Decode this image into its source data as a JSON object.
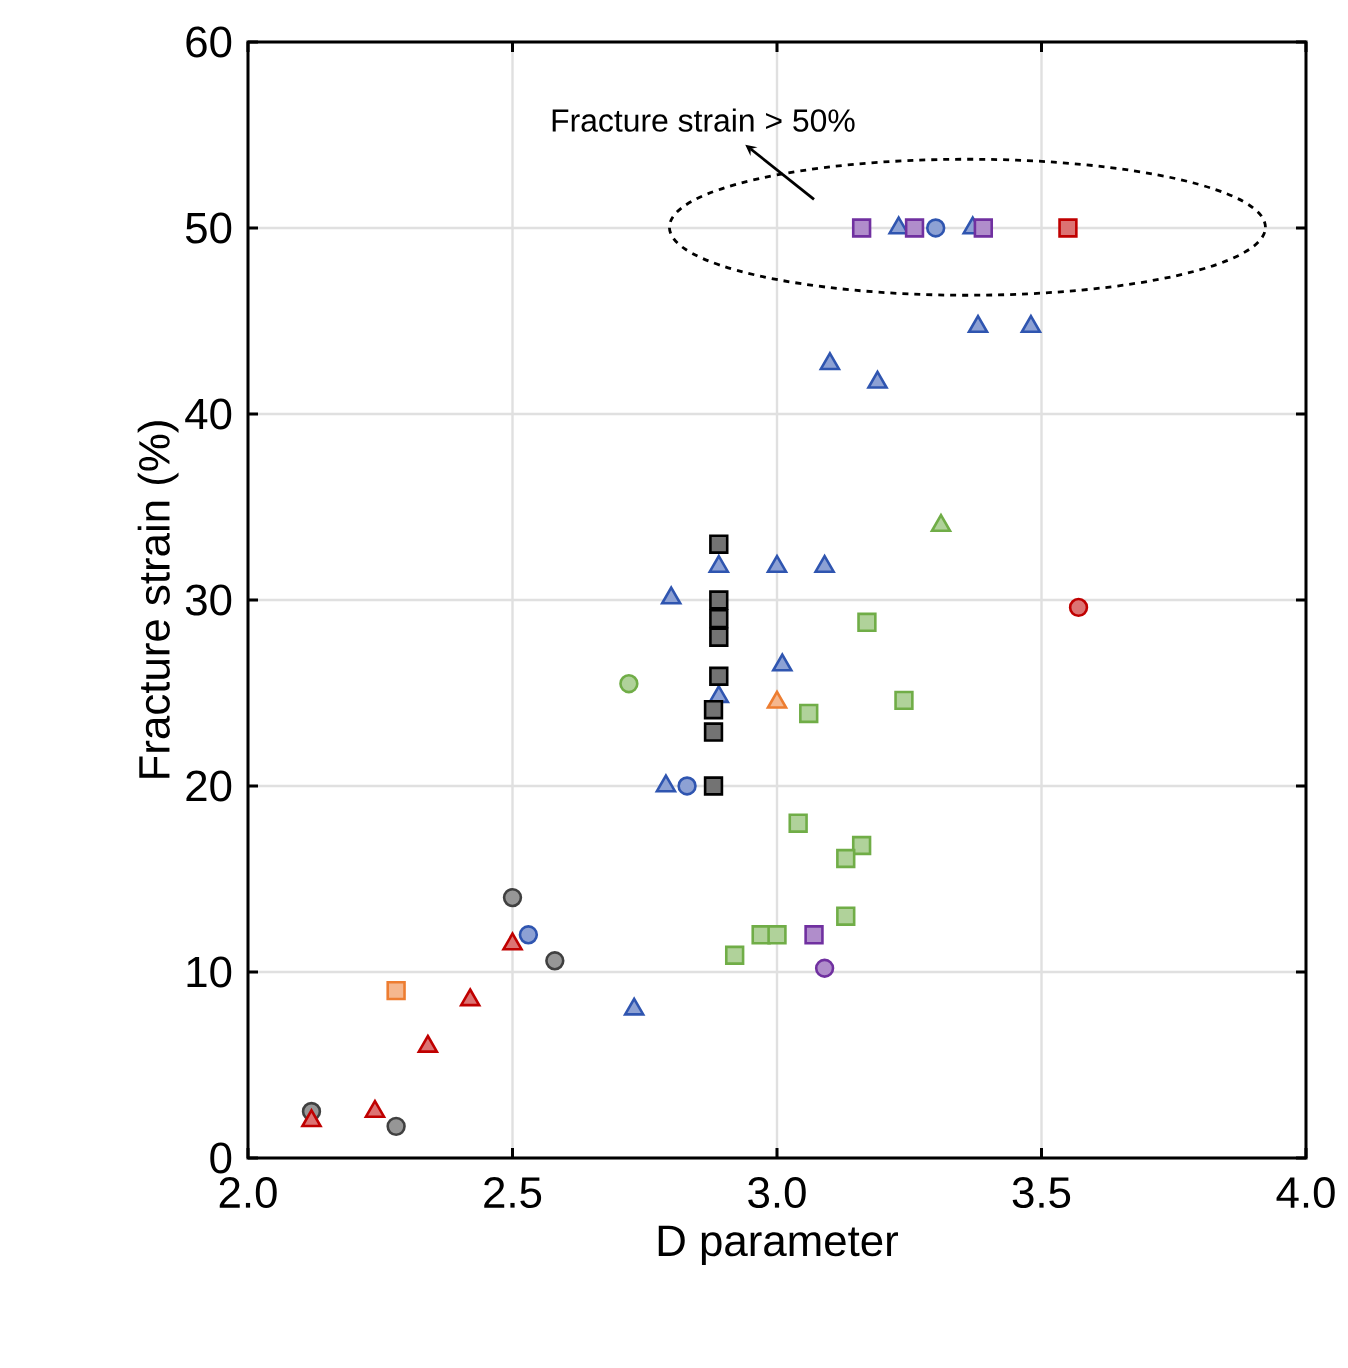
{
  "chart_data": {
    "type": "scatter",
    "xlabel": "D parameter",
    "ylabel": "Fracture strain (%)",
    "xlim": [
      2,
      4
    ],
    "ylim": [
      0,
      60
    ],
    "xticks": [
      {
        "value": 2,
        "label": "2.0"
      },
      {
        "value": 2.5,
        "label": "2.5"
      },
      {
        "value": 3,
        "label": "3.0"
      },
      {
        "value": 3.5,
        "label": "3.5"
      },
      {
        "value": 4,
        "label": "4.0"
      }
    ],
    "yticks": [
      0,
      10,
      20,
      30,
      40,
      50,
      60
    ],
    "grid": true,
    "annotations": [
      "Fracture strain > 50%"
    ],
    "series": [
      {
        "color": "#404040",
        "marker": "circle",
        "x": [
          2.12,
          2.5,
          2.58,
          2.28
        ],
        "values": [
          2.5,
          14,
          10.6,
          1.7
        ]
      },
      {
        "color": "#2f55b0",
        "marker": "circle",
        "x": [
          2.53,
          2.83,
          3.3
        ],
        "values": [
          12,
          20,
          50
        ]
      },
      {
        "color": "#2f55b0",
        "marker": "triangle",
        "x": [
          2.73,
          2.79,
          2.8,
          2.89,
          3.0,
          3.09,
          2.89,
          3.01,
          3.1,
          3.19,
          3.38,
          3.48,
          3.23,
          3.37
        ],
        "values": [
          8,
          20,
          30.1,
          31.8,
          31.8,
          31.8,
          24.8,
          26.5,
          42.7,
          41.7,
          44.7,
          44.7,
          50,
          50
        ]
      },
      {
        "color": "#c00000",
        "marker": "triangle",
        "x": [
          2.12,
          2.24,
          2.34,
          2.42,
          2.5
        ],
        "values": [
          2,
          2.5,
          6,
          8.5,
          11.5
        ]
      },
      {
        "color": "#ed7d31",
        "marker": "square",
        "x": [
          2.28
        ],
        "values": [
          9
        ]
      },
      {
        "color": "#ed7d31",
        "marker": "triangle",
        "x": [
          3.0
        ],
        "values": [
          24.5
        ]
      },
      {
        "color": "#70ad47",
        "marker": "circle",
        "x": [
          2.72
        ],
        "values": [
          25.5
        ]
      },
      {
        "color": "#70ad47",
        "marker": "triangle",
        "x": [
          3.31
        ],
        "values": [
          34
        ]
      },
      {
        "color": "#70ad47",
        "marker": "square",
        "x": [
          3.17,
          3.24,
          3.06,
          3.04,
          3.16,
          3.13,
          3.13,
          2.97,
          3.0,
          2.92
        ],
        "values": [
          28.8,
          24.6,
          23.9,
          18,
          16.8,
          16.1,
          13,
          12,
          12,
          10.9
        ]
      },
      {
        "color": "#7030a0",
        "marker": "square",
        "x": [
          3.07,
          3.16,
          3.26,
          3.39
        ],
        "values": [
          12,
          50,
          50,
          50
        ]
      },
      {
        "color": "#7030a0",
        "marker": "circle",
        "x": [
          3.09
        ],
        "values": [
          10.2
        ]
      },
      {
        "color": "#c00000",
        "marker": "square",
        "x": [
          3.55
        ],
        "values": [
          50
        ]
      },
      {
        "color": "#c00000",
        "marker": "circle",
        "x": [
          3.57
        ],
        "values": [
          29.6
        ]
      },
      {
        "color": "#000000",
        "marker": "square",
        "x": [
          2.89,
          2.89,
          2.89,
          2.89,
          2.89,
          2.88,
          2.88,
          2.88
        ],
        "values": [
          33,
          30,
          29,
          28,
          25.9,
          24.1,
          22.9,
          20
        ]
      }
    ]
  }
}
